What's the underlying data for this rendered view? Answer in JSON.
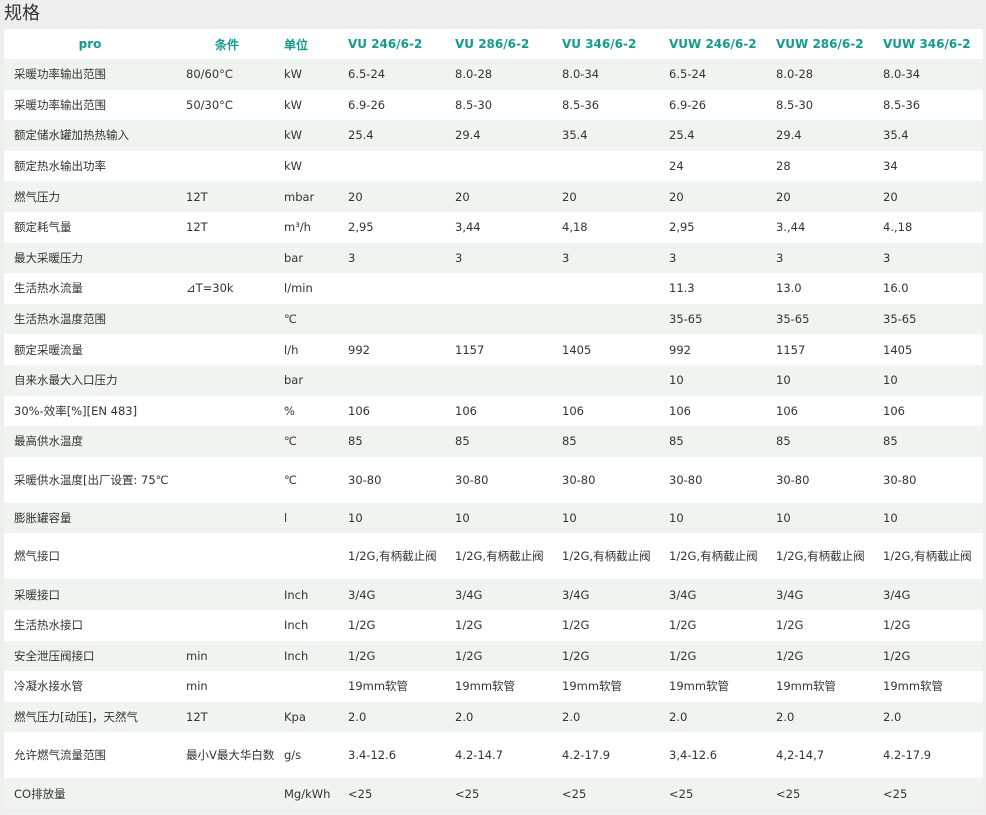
{
  "heading": "规格",
  "table": {
    "headers": [
      "pro",
      "条件",
      "单位",
      "VU 246/6-2",
      "VU 286/6-2",
      "VU 346/6-2",
      "VUW 246/6-2",
      "VUW 286/6-2",
      "VUW 346/6-2"
    ],
    "rows": [
      {
        "name": "采暖功率输出范围",
        "cond": "80/60°C",
        "unit": "kW",
        "vals": [
          "6.5-24",
          "8.0-28",
          "8.0-34",
          "6.5-24",
          "8.0-28",
          "8.0-34"
        ]
      },
      {
        "name": "采暖功率输出范围",
        "cond": "50/30°C",
        "unit": "kW",
        "vals": [
          "6.9-26",
          "8.5-30",
          "8.5-36",
          "6.9-26",
          "8.5-30",
          "8.5-36"
        ]
      },
      {
        "name": "额定储水罐加热热输入",
        "cond": "",
        "unit": "kW",
        "vals": [
          "25.4",
          "29.4",
          "35.4",
          "25.4",
          "29.4",
          "35.4"
        ]
      },
      {
        "name": "额定热水输出功率",
        "cond": "",
        "unit": "kW",
        "vals": [
          "",
          "",
          "",
          "24",
          "28",
          "34"
        ]
      },
      {
        "name": "燃气压力",
        "cond": "12T",
        "unit": "mbar",
        "vals": [
          "20",
          "20",
          "20",
          "20",
          "20",
          "20"
        ]
      },
      {
        "name": "额定耗气量",
        "cond": "12T",
        "unit": "m³/h",
        "vals": [
          "2,95",
          "3,44",
          "4,18",
          "2,95",
          "3.,44",
          "4.,18"
        ]
      },
      {
        "name": "最大采暖压力",
        "cond": "",
        "unit": "bar",
        "vals": [
          "3",
          "3",
          "3",
          "3",
          "3",
          "3"
        ]
      },
      {
        "name": "生活热水流量",
        "cond": "⊿T=30k",
        "unit": "l/min",
        "vals": [
          "",
          "",
          "",
          "11.3",
          "13.0",
          "16.0"
        ]
      },
      {
        "name": "生活热水温度范围",
        "cond": "",
        "unit": "℃",
        "vals": [
          "",
          "",
          "",
          "35-65",
          "35-65",
          "35-65"
        ]
      },
      {
        "name": "额定采暖流量",
        "cond": "",
        "unit": "l/h",
        "vals": [
          "992",
          "1157",
          "1405",
          "992",
          "1157",
          "1405"
        ]
      },
      {
        "name": "自来水最大入口压力",
        "cond": "",
        "unit": "bar",
        "vals": [
          "",
          "",
          "",
          "10",
          "10",
          "10"
        ]
      },
      {
        "name": "30%-效率[%][EN 483]",
        "cond": "",
        "unit": "%",
        "vals": [
          "106",
          "106",
          "106",
          "106",
          "106",
          "106"
        ]
      },
      {
        "name": "最高供水温度",
        "cond": "",
        "unit": "℃",
        "vals": [
          "85",
          "85",
          "85",
          "85",
          "85",
          "85"
        ]
      },
      {
        "name": "采暖供水温度[出厂设置: 75℃",
        "cond": "",
        "unit": "℃",
        "vals": [
          "30-80",
          "30-80",
          "30-80",
          "30-80",
          "30-80",
          "30-80"
        ],
        "tall": true
      },
      {
        "name": "膨胀罐容量",
        "cond": "",
        "unit": "l",
        "vals": [
          "10",
          "10",
          "10",
          "10",
          "10",
          "10"
        ]
      },
      {
        "name": "燃气接口",
        "cond": "",
        "unit": "",
        "vals": [
          "1/2G,有柄截止阀",
          "1/2G,有柄截止阀",
          "1/2G,有柄截止阀",
          "1/2G,有柄截止阀",
          "1/2G,有柄截止阀",
          "1/2G,有柄截止阀"
        ],
        "tall": true
      },
      {
        "name": "采暖接口",
        "cond": "",
        "unit": "Inch",
        "vals": [
          "3/4G",
          "3/4G",
          "3/4G",
          "3/4G",
          "3/4G",
          "3/4G"
        ]
      },
      {
        "name": "生活热水接口",
        "cond": "",
        "unit": "Inch",
        "vals": [
          "1/2G",
          "1/2G",
          "1/2G",
          "1/2G",
          "1/2G",
          "1/2G"
        ]
      },
      {
        "name": "安全泄压阀接口",
        "cond": "min",
        "unit": "Inch",
        "vals": [
          "1/2G",
          "1/2G",
          "1/2G",
          "1/2G",
          "1/2G",
          "1/2G"
        ]
      },
      {
        "name": "冷凝水接水管",
        "cond": "min",
        "unit": "",
        "vals": [
          "19mm软管",
          "19mm软管",
          "19mm软管",
          "19mm软管",
          "19mm软管",
          "19mm软管"
        ]
      },
      {
        "name": "燃气压力[动压]，天然气",
        "cond": "12T",
        "unit": "Kpa",
        "vals": [
          "2.0",
          "2.0",
          "2.0",
          "2.0",
          "2.0",
          "2.0"
        ]
      },
      {
        "name": "允许燃气流量范围",
        "cond": "最小V最大华白数",
        "unit": "g/s",
        "vals": [
          "3.4-12.6",
          "4.2-14.7",
          "4.2-17.9",
          "3,4-12.6",
          "4,2-14,7",
          "4.2-17.9"
        ],
        "tall": true
      },
      {
        "name": "CO排放量",
        "cond": "",
        "unit": "Mg/kWh",
        "vals": [
          "<25",
          "<25",
          "<25",
          "<25",
          "<25",
          "<25"
        ]
      }
    ]
  },
  "colors": {
    "header_text": "#159a8c",
    "stripe": "#f0f4f1",
    "page_bg": "#eeeeee"
  }
}
